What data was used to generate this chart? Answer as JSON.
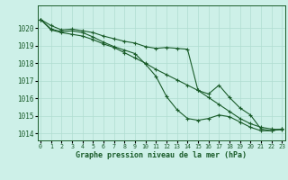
{
  "background_color": "#cdf0e8",
  "grid_color": "#b0ddd0",
  "line_color": "#1a5c2a",
  "marker_color": "#1a5c2a",
  "xlabel": "Graphe pression niveau de la mer (hPa)",
  "xlabel_fontsize": 6.0,
  "ylabel_ticks": [
    1014,
    1015,
    1016,
    1017,
    1018,
    1019,
    1020
  ],
  "xlim": [
    -0.3,
    23.3
  ],
  "ylim": [
    1013.6,
    1021.3
  ],
  "xticks": [
    0,
    1,
    2,
    3,
    4,
    5,
    6,
    7,
    8,
    9,
    10,
    11,
    12,
    13,
    14,
    15,
    16,
    17,
    18,
    19,
    20,
    21,
    22,
    23
  ],
  "series1": [
    1020.5,
    1020.15,
    1019.9,
    1019.95,
    1019.85,
    1019.75,
    1019.55,
    1019.4,
    1019.25,
    1019.15,
    1018.95,
    1018.85,
    1018.9,
    1018.85,
    1018.8,
    1016.45,
    1016.25,
    1016.75,
    1016.05,
    1015.45,
    1015.05,
    1014.25,
    1014.15,
    1014.25
  ],
  "series2": [
    1020.5,
    1019.95,
    1019.8,
    1019.85,
    1019.75,
    1019.5,
    1019.2,
    1018.95,
    1018.75,
    1018.55,
    1017.95,
    1017.25,
    1016.1,
    1015.35,
    1014.85,
    1014.75,
    1014.85,
    1015.05,
    1014.95,
    1014.65,
    1014.35,
    1014.15,
    1014.15,
    1014.25
  ],
  "series3": [
    1020.5,
    1019.9,
    1019.75,
    1019.65,
    1019.55,
    1019.35,
    1019.1,
    1018.9,
    1018.6,
    1018.3,
    1018.0,
    1017.65,
    1017.35,
    1017.05,
    1016.75,
    1016.45,
    1016.05,
    1015.65,
    1015.25,
    1014.85,
    1014.55,
    1014.35,
    1014.25,
    1014.2
  ]
}
